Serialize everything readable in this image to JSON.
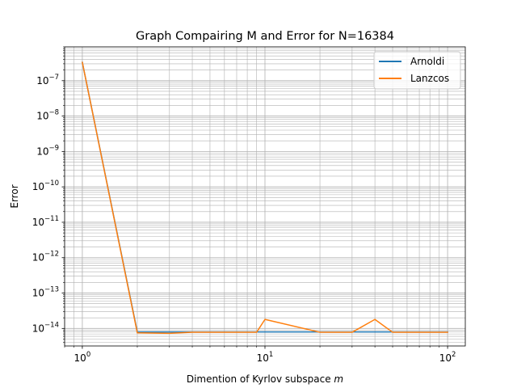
{
  "chart_data": {
    "type": "line",
    "title": "Graph Compairing M and Error for N=16384",
    "xlabel": "Dimention of Kyrlov subspace ",
    "xlabel_var": "m",
    "ylabel": "Error",
    "xscale": "log",
    "yscale": "log",
    "xlim": [
      0.8,
      125
    ],
    "ylim": [
      3.2e-15,
      9e-07
    ],
    "grid": "both major and minor",
    "legend_position": "top-right",
    "x_ticks": [
      {
        "value": 1,
        "base": "10",
        "exp": "0"
      },
      {
        "value": 10,
        "base": "10",
        "exp": "1"
      },
      {
        "value": 100,
        "base": "10",
        "exp": "2"
      }
    ],
    "y_ticks": [
      {
        "value": 1e-14,
        "base": "10",
        "exp": "−14"
      },
      {
        "value": 1e-13,
        "base": "10",
        "exp": "−13"
      },
      {
        "value": 1e-12,
        "base": "10",
        "exp": "−12"
      },
      {
        "value": 1e-11,
        "base": "10",
        "exp": "−11"
      },
      {
        "value": 1e-10,
        "base": "10",
        "exp": "−10"
      },
      {
        "value": 1e-09,
        "base": "10",
        "exp": "−9"
      },
      {
        "value": 1e-08,
        "base": "10",
        "exp": "−8"
      },
      {
        "value": 1e-07,
        "base": "10",
        "exp": "−7"
      }
    ],
    "series": [
      {
        "name": "Arnoldi",
        "color": "#1f77b4",
        "x": [
          1,
          2,
          3,
          4,
          5,
          6,
          7,
          8,
          9,
          10,
          20,
          30,
          40,
          50,
          60,
          70,
          80,
          90,
          100
        ],
        "y": [
          3.3e-07,
          8e-15,
          8e-15,
          8e-15,
          8e-15,
          8e-15,
          8e-15,
          8e-15,
          8e-15,
          8e-15,
          8e-15,
          8e-15,
          8e-15,
          8e-15,
          8e-15,
          8e-15,
          8e-15,
          8e-15,
          8e-15
        ]
      },
      {
        "name": "Lanzcos",
        "color": "#ff7f0e",
        "x": [
          1,
          2,
          3,
          4,
          5,
          6,
          7,
          8,
          9,
          10,
          20,
          30,
          40,
          50,
          60,
          70,
          80,
          90,
          100
        ],
        "y": [
          3.3e-07,
          7.5e-15,
          7.3e-15,
          7.8e-15,
          7.8e-15,
          7.8e-15,
          7.8e-15,
          7.8e-15,
          7.8e-15,
          1.8e-14,
          7.8e-15,
          7.8e-15,
          1.8e-14,
          7.8e-15,
          7.8e-15,
          7.8e-15,
          7.8e-15,
          7.8e-15,
          7.8e-15
        ]
      }
    ]
  }
}
